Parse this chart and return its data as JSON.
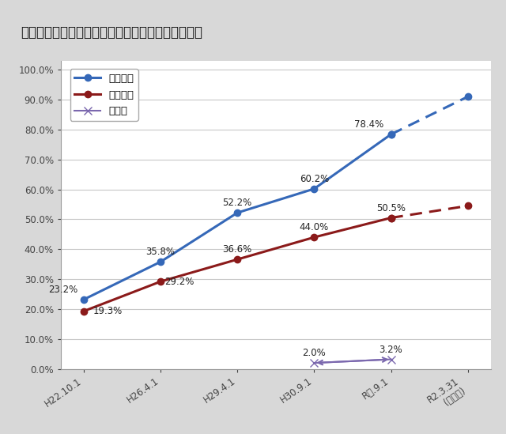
{
  "title": "公立小中学校等の空調（冷房）設備設置状況の推移",
  "x_labels": [
    "H22.10.1",
    "H26.4.1",
    "H29.4.1",
    "H30.9.1",
    "R元.9.1",
    "R2.3.31\n(見込み)"
  ],
  "x_positions": [
    0,
    1,
    2,
    3,
    4,
    5
  ],
  "series": [
    {
      "name": "普通教室",
      "color": "#3568b8",
      "values": [
        23.2,
        35.8,
        52.2,
        60.2,
        78.4,
        91.0
      ],
      "solid_up_to": 4,
      "marker": "o",
      "linewidth": 2.2,
      "markersize": 6
    },
    {
      "name": "特別教室",
      "color": "#8b1a1a",
      "values": [
        19.3,
        29.2,
        36.6,
        44.0,
        50.5,
        54.5
      ],
      "solid_up_to": 4,
      "marker": "o",
      "linewidth": 2.2,
      "markersize": 6
    },
    {
      "name": "体育館",
      "color": "#7b68ae",
      "values": [
        null,
        null,
        null,
        2.0,
        3.2,
        null
      ],
      "solid_up_to": 4,
      "marker": "x",
      "linewidth": 1.5,
      "markersize": 7
    }
  ],
  "fig_bg_color": "#d8d8d8",
  "plot_bg_color": "#ffffff",
  "grid_color": "#c8c8c8",
  "title_bg_color": "#c5d3e8",
  "title_fontsize": 12,
  "tick_fontsize": 8.5,
  "legend_fontsize": 9.5,
  "annotation_fontsize": 8.5
}
